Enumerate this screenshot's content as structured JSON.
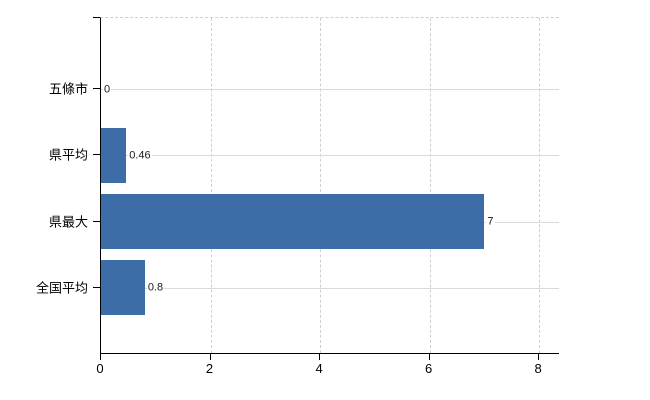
{
  "chart_data": {
    "type": "bar",
    "orientation": "horizontal",
    "title": "",
    "categories": [
      "五條市",
      "県平均",
      "県最大",
      "全国平均"
    ],
    "values": [
      0,
      0.46,
      7,
      0.8
    ],
    "value_labels": [
      "0",
      "0.46",
      "7",
      "0.8"
    ],
    "x_ticks": [
      0,
      2,
      4,
      6,
      8
    ],
    "x_tick_labels": [
      "0",
      "2",
      "4",
      "6",
      "8"
    ],
    "xlim": [
      0,
      8.38
    ],
    "grid": "on",
    "legend": "none",
    "colors": {
      "bar": "#3d6da7",
      "axis": "#000000",
      "gridline_solid": "#d7dcd7",
      "gridline_dashed": "#d2cdd2",
      "text": "#000000",
      "value_label_text": "#1a1a1a",
      "background": "#ffffff"
    }
  }
}
